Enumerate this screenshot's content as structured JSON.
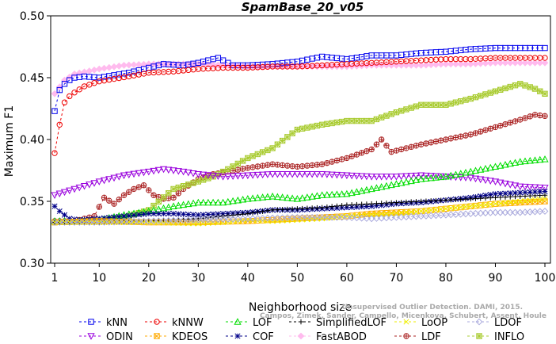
{
  "chart_data": {
    "type": "line",
    "title": "SpamBase_20_v05",
    "xlabel": "Neighborhood size",
    "ylabel": "Maximum F1",
    "xlim": [
      0,
      100
    ],
    "ylim": [
      0.3,
      0.5
    ],
    "xticks": [
      "1",
      "10",
      "20",
      "30",
      "40",
      "50",
      "60",
      "70",
      "80",
      "90",
      "100"
    ],
    "yticks": [
      "0.30",
      "0.35",
      "0.40",
      "0.45",
      "0.50"
    ],
    "legend_position": "bottom",
    "series": [
      {
        "name": "kNN",
        "color": "#0000ee",
        "marker": "square",
        "dash": "3,3",
        "points": [
          [
            1,
            0.423
          ],
          [
            2,
            0.44
          ],
          [
            3,
            0.445
          ],
          [
            4,
            0.448
          ],
          [
            5,
            0.45
          ],
          [
            7,
            0.451
          ],
          [
            10,
            0.45
          ],
          [
            13,
            0.452
          ],
          [
            16,
            0.454
          ],
          [
            20,
            0.458
          ],
          [
            23,
            0.461
          ],
          [
            27,
            0.46
          ],
          [
            30,
            0.462
          ],
          [
            34,
            0.466
          ],
          [
            37,
            0.46
          ],
          [
            40,
            0.46
          ],
          [
            45,
            0.461
          ],
          [
            50,
            0.463
          ],
          [
            55,
            0.467
          ],
          [
            60,
            0.465
          ],
          [
            65,
            0.468
          ],
          [
            70,
            0.468
          ],
          [
            75,
            0.47
          ],
          [
            80,
            0.471
          ],
          [
            85,
            0.473
          ],
          [
            90,
            0.474
          ],
          [
            95,
            0.474
          ],
          [
            100,
            0.474
          ]
        ]
      },
      {
        "name": "kNNW",
        "color": "#ee0000",
        "marker": "circle",
        "dash": "3,3",
        "points": [
          [
            1,
            0.389
          ],
          [
            2,
            0.412
          ],
          [
            3,
            0.43
          ],
          [
            4,
            0.435
          ],
          [
            5,
            0.438
          ],
          [
            7,
            0.443
          ],
          [
            10,
            0.447
          ],
          [
            13,
            0.449
          ],
          [
            16,
            0.451
          ],
          [
            20,
            0.454
          ],
          [
            25,
            0.455
          ],
          [
            30,
            0.457
          ],
          [
            35,
            0.458
          ],
          [
            40,
            0.458
          ],
          [
            45,
            0.459
          ],
          [
            50,
            0.459
          ],
          [
            55,
            0.46
          ],
          [
            60,
            0.461
          ],
          [
            65,
            0.462
          ],
          [
            70,
            0.463
          ],
          [
            75,
            0.464
          ],
          [
            80,
            0.465
          ],
          [
            85,
            0.465
          ],
          [
            90,
            0.466
          ],
          [
            95,
            0.466
          ],
          [
            100,
            0.466
          ]
        ]
      },
      {
        "name": "LOF",
        "color": "#00dd00",
        "marker": "triangle-up",
        "dash": "3,3",
        "points": [
          [
            1,
            0.334
          ],
          [
            5,
            0.334
          ],
          [
            10,
            0.335
          ],
          [
            15,
            0.339
          ],
          [
            20,
            0.342
          ],
          [
            25,
            0.346
          ],
          [
            30,
            0.349
          ],
          [
            35,
            0.349
          ],
          [
            40,
            0.352
          ],
          [
            45,
            0.354
          ],
          [
            50,
            0.352
          ],
          [
            55,
            0.355
          ],
          [
            60,
            0.356
          ],
          [
            65,
            0.36
          ],
          [
            70,
            0.364
          ],
          [
            75,
            0.368
          ],
          [
            80,
            0.37
          ],
          [
            85,
            0.374
          ],
          [
            90,
            0.378
          ],
          [
            95,
            0.382
          ],
          [
            100,
            0.384
          ]
        ]
      },
      {
        "name": "SimplifiedLOF",
        "color": "#000000",
        "marker": "plus",
        "dash": "3,3",
        "points": [
          [
            1,
            0.333
          ],
          [
            10,
            0.333
          ],
          [
            20,
            0.334
          ],
          [
            30,
            0.336
          ],
          [
            35,
            0.338
          ],
          [
            40,
            0.34
          ],
          [
            45,
            0.343
          ],
          [
            50,
            0.344
          ],
          [
            55,
            0.345
          ],
          [
            60,
            0.347
          ],
          [
            65,
            0.348
          ],
          [
            70,
            0.349
          ],
          [
            75,
            0.35
          ],
          [
            80,
            0.351
          ],
          [
            85,
            0.352
          ],
          [
            90,
            0.353
          ],
          [
            95,
            0.354
          ],
          [
            100,
            0.355
          ]
        ]
      },
      {
        "name": "LoOP",
        "color": "#eeee00",
        "marker": "x",
        "dash": "3,3",
        "points": [
          [
            1,
            0.333
          ],
          [
            10,
            0.333
          ],
          [
            20,
            0.333
          ],
          [
            30,
            0.332
          ],
          [
            35,
            0.333
          ],
          [
            40,
            0.335
          ],
          [
            45,
            0.334
          ],
          [
            50,
            0.335
          ],
          [
            55,
            0.336
          ],
          [
            60,
            0.338
          ],
          [
            65,
            0.339
          ],
          [
            70,
            0.34
          ],
          [
            75,
            0.342
          ],
          [
            80,
            0.344
          ],
          [
            85,
            0.346
          ],
          [
            90,
            0.348
          ],
          [
            95,
            0.35
          ],
          [
            100,
            0.352
          ]
        ]
      },
      {
        "name": "LDOF",
        "color": "#aaaadd",
        "marker": "diamond",
        "dash": "3,3",
        "points": [
          [
            1,
            0.333
          ],
          [
            10,
            0.333
          ],
          [
            20,
            0.334
          ],
          [
            30,
            0.335
          ],
          [
            40,
            0.336
          ],
          [
            50,
            0.337
          ],
          [
            60,
            0.337
          ],
          [
            65,
            0.336
          ],
          [
            70,
            0.337
          ],
          [
            75,
            0.338
          ],
          [
            80,
            0.339
          ],
          [
            85,
            0.34
          ],
          [
            90,
            0.341
          ],
          [
            95,
            0.341
          ],
          [
            100,
            0.342
          ]
        ]
      },
      {
        "name": "ODIN",
        "color": "#9900dd",
        "marker": "triangle-down",
        "dash": "3,3",
        "points": [
          [
            1,
            0.355
          ],
          [
            5,
            0.36
          ],
          [
            10,
            0.366
          ],
          [
            15,
            0.371
          ],
          [
            20,
            0.374
          ],
          [
            23,
            0.376
          ],
          [
            27,
            0.374
          ],
          [
            30,
            0.372
          ],
          [
            35,
            0.37
          ],
          [
            40,
            0.371
          ],
          [
            45,
            0.372
          ],
          [
            50,
            0.372
          ],
          [
            55,
            0.372
          ],
          [
            60,
            0.371
          ],
          [
            65,
            0.37
          ],
          [
            70,
            0.37
          ],
          [
            75,
            0.371
          ],
          [
            80,
            0.37
          ],
          [
            85,
            0.369
          ],
          [
            90,
            0.366
          ],
          [
            95,
            0.362
          ],
          [
            100,
            0.361
          ]
        ]
      },
      {
        "name": "KDEOS",
        "color": "#ffaa00",
        "marker": "square-x",
        "dash": "3,3",
        "points": [
          [
            1,
            0.333
          ],
          [
            10,
            0.334
          ],
          [
            20,
            0.333
          ],
          [
            30,
            0.333
          ],
          [
            40,
            0.334
          ],
          [
            45,
            0.335
          ],
          [
            50,
            0.336
          ],
          [
            55,
            0.337
          ],
          [
            60,
            0.338
          ],
          [
            65,
            0.34
          ],
          [
            70,
            0.341
          ],
          [
            75,
            0.342
          ],
          [
            80,
            0.344
          ],
          [
            85,
            0.346
          ],
          [
            90,
            0.348
          ],
          [
            95,
            0.349
          ],
          [
            100,
            0.35
          ]
        ]
      },
      {
        "name": "COF",
        "color": "#000088",
        "marker": "star",
        "dash": "3,3",
        "points": [
          [
            1,
            0.346
          ],
          [
            2,
            0.342
          ],
          [
            4,
            0.336
          ],
          [
            6,
            0.335
          ],
          [
            10,
            0.336
          ],
          [
            15,
            0.338
          ],
          [
            20,
            0.34
          ],
          [
            25,
            0.34
          ],
          [
            30,
            0.339
          ],
          [
            35,
            0.34
          ],
          [
            40,
            0.341
          ],
          [
            45,
            0.343
          ],
          [
            50,
            0.343
          ],
          [
            55,
            0.344
          ],
          [
            60,
            0.345
          ],
          [
            65,
            0.346
          ],
          [
            70,
            0.348
          ],
          [
            75,
            0.349
          ],
          [
            80,
            0.351
          ],
          [
            85,
            0.353
          ],
          [
            90,
            0.356
          ],
          [
            95,
            0.357
          ],
          [
            100,
            0.358
          ]
        ]
      },
      {
        "name": "FastABOD",
        "color": "#ffbbee",
        "marker": "diamond-filled",
        "dash": "3,3",
        "points": [
          [
            1,
            0.437
          ],
          [
            3,
            0.448
          ],
          [
            5,
            0.453
          ],
          [
            10,
            0.457
          ],
          [
            15,
            0.46
          ],
          [
            20,
            0.461
          ],
          [
            25,
            0.461
          ],
          [
            30,
            0.461
          ],
          [
            35,
            0.46
          ],
          [
            40,
            0.459
          ],
          [
            45,
            0.459
          ],
          [
            50,
            0.459
          ],
          [
            55,
            0.459
          ],
          [
            60,
            0.459
          ],
          [
            65,
            0.46
          ],
          [
            70,
            0.46
          ],
          [
            75,
            0.46
          ],
          [
            80,
            0.461
          ],
          [
            85,
            0.461
          ],
          [
            90,
            0.462
          ],
          [
            95,
            0.462
          ],
          [
            100,
            0.462
          ]
        ]
      },
      {
        "name": "LDF",
        "color": "#aa2222",
        "marker": "circle-plus",
        "dash": "3,3",
        "points": [
          [
            1,
            0.334
          ],
          [
            5,
            0.334
          ],
          [
            9,
            0.338
          ],
          [
            11,
            0.353
          ],
          [
            13,
            0.348
          ],
          [
            15,
            0.355
          ],
          [
            17,
            0.36
          ],
          [
            19,
            0.363
          ],
          [
            21,
            0.355
          ],
          [
            23,
            0.352
          ],
          [
            25,
            0.353
          ],
          [
            27,
            0.36
          ],
          [
            30,
            0.368
          ],
          [
            33,
            0.372
          ],
          [
            36,
            0.374
          ],
          [
            40,
            0.377
          ],
          [
            45,
            0.38
          ],
          [
            50,
            0.378
          ],
          [
            55,
            0.38
          ],
          [
            60,
            0.385
          ],
          [
            65,
            0.392
          ],
          [
            67,
            0.4
          ],
          [
            69,
            0.39
          ],
          [
            72,
            0.393
          ],
          [
            75,
            0.396
          ],
          [
            80,
            0.4
          ],
          [
            85,
            0.404
          ],
          [
            90,
            0.41
          ],
          [
            95,
            0.416
          ],
          [
            98,
            0.42
          ],
          [
            100,
            0.419
          ]
        ]
      },
      {
        "name": "INFLO",
        "color": "#aacc33",
        "marker": "star-square",
        "dash": "3,3",
        "points": [
          [
            1,
            0.333
          ],
          [
            10,
            0.334
          ],
          [
            15,
            0.337
          ],
          [
            20,
            0.343
          ],
          [
            25,
            0.36
          ],
          [
            30,
            0.366
          ],
          [
            33,
            0.37
          ],
          [
            36,
            0.376
          ],
          [
            40,
            0.385
          ],
          [
            45,
            0.393
          ],
          [
            50,
            0.408
          ],
          [
            55,
            0.412
          ],
          [
            60,
            0.415
          ],
          [
            65,
            0.415
          ],
          [
            70,
            0.422
          ],
          [
            75,
            0.428
          ],
          [
            80,
            0.428
          ],
          [
            85,
            0.433
          ],
          [
            90,
            0.439
          ],
          [
            95,
            0.445
          ],
          [
            98,
            0.441
          ],
          [
            100,
            0.437
          ]
        ]
      }
    ],
    "annotation": "Campos, Zimek, Sander, Campello, Micenkova, Schubert, Assent, Houle",
    "annotation2": "Unsupervised Outlier Detection. DAMI, 2015."
  }
}
